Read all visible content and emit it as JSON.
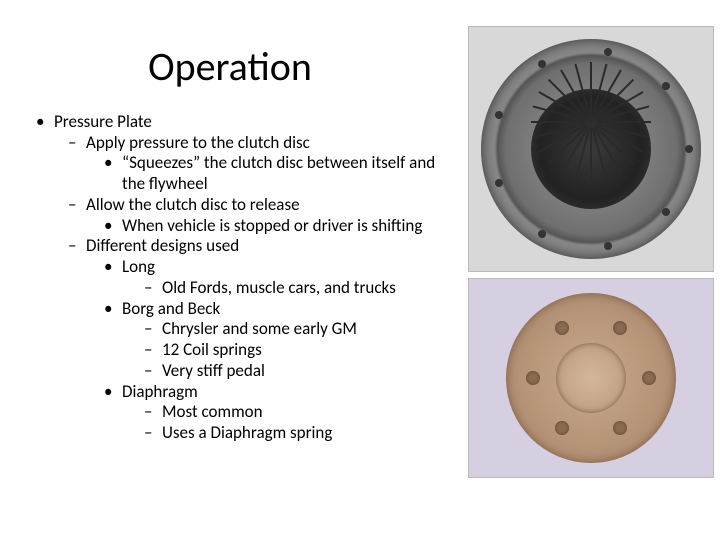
{
  "title": "Operation",
  "bullets": {
    "l1": "Pressure Plate",
    "l2a": "Apply pressure to the clutch disc",
    "l3a": "“Squeezes” the clutch disc between itself and the flywheel",
    "l2b": "Allow the clutch disc to release",
    "l3b": "When vehicle is stopped or driver is shifting",
    "l2c": "Different designs used",
    "l3c1": "Long",
    "l4c1a": "Old Fords, muscle cars, and trucks",
    "l3c2": "Borg and Beck",
    "l4c2a": "Chrysler and some early GM",
    "l4c2b": "12 Coil springs",
    "l4c2c": "Very stiff pedal",
    "l3c3": "Diaphragm",
    "l4c3a": "Most common",
    "l4c3b": "Uses a Diaphragm spring"
  },
  "images": {
    "img1_alt": "diaphragm-pressure-plate-photo",
    "img2_alt": "borg-beck-pressure-plate-photo"
  },
  "style": {
    "title_fontsize": 40,
    "body_fontsize": 17,
    "text_color": "#000000",
    "background": "#ffffff",
    "img1_bg": "#d8d8d8",
    "img2_bg": "#d6cfe2",
    "plate1_colors": [
      "#9a9a9a",
      "#6f6f6f",
      "#555555",
      "#888888",
      "#777777",
      "#3a3a3a",
      "#222222",
      "#444444",
      "#2a2a2a",
      "#333333"
    ],
    "plate2_colors": [
      "#c9a98f",
      "#b8967a",
      "#a8846a",
      "#d4b89c",
      "#8a6a50",
      "#7a5c44",
      "#5a4030"
    ]
  }
}
